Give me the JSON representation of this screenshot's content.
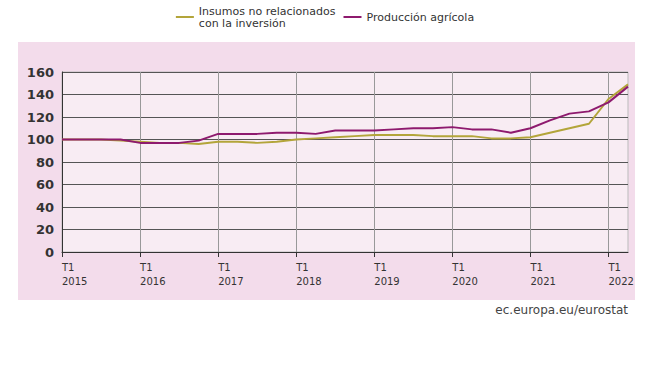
{
  "chart_data": {
    "type": "line",
    "categories": [
      "T1\n2015",
      null,
      null,
      null,
      "T1\n2016",
      null,
      null,
      null,
      "T1\n2017",
      null,
      null,
      null,
      "T1\n2018",
      null,
      null,
      null,
      "T1\n2019",
      null,
      null,
      null,
      "T1\n2020",
      null,
      null,
      null,
      "T1\n2021",
      null,
      null,
      null,
      "T1\n2022",
      null
    ],
    "series": [
      {
        "name": "Insumos no relacionados\ncon la inversión",
        "color": "#b3a53a",
        "values": [
          100,
          100,
          100,
          99,
          98,
          97,
          97,
          96,
          98,
          98,
          97,
          98,
          100,
          101,
          102,
          103,
          104,
          104,
          104,
          103,
          103,
          103,
          101,
          101,
          102,
          106,
          110,
          114,
          136,
          149
        ]
      },
      {
        "name": "Producción agrícola",
        "color": "#8e1a6e",
        "values": [
          100,
          100,
          100,
          100,
          97,
          97,
          97,
          99,
          105,
          105,
          105,
          106,
          106,
          105,
          108,
          108,
          108,
          109,
          110,
          110,
          111,
          109,
          109,
          106,
          110,
          117,
          123,
          125,
          133,
          147
        ]
      }
    ],
    "ylim": [
      0,
      160
    ],
    "yticks": [
      0,
      20,
      40,
      60,
      80,
      100,
      120,
      140,
      160
    ],
    "grid": true,
    "legend": "top",
    "annotations": [
      "ec.europa.eu/eurostat"
    ]
  }
}
